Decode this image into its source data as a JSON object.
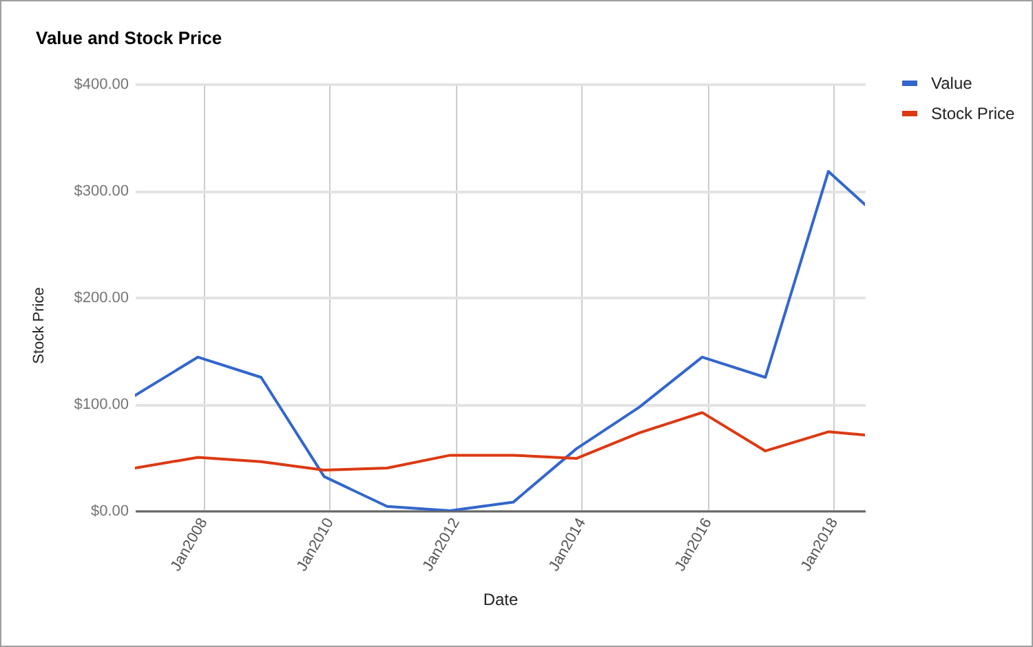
{
  "chart_data": {
    "type": "line",
    "title": "Value and Stock Price",
    "xlabel": "Date",
    "ylabel": "Stock Price",
    "x": [
      "2006-12",
      "2007-12",
      "2008-12",
      "2009-12",
      "2010-12",
      "2011-12",
      "2012-12",
      "2013-12",
      "2014-12",
      "2015-12",
      "2016-12",
      "2017-12",
      "2018-07"
    ],
    "series": [
      {
        "name": "Value",
        "color": "#3366cc",
        "values": [
          108,
          144,
          125,
          32,
          4,
          0,
          8,
          58,
          97,
          144,
          125,
          318,
          287
        ]
      },
      {
        "name": "Stock Price",
        "color": "#dc3912",
        "values": [
          40,
          50,
          46,
          38,
          40,
          52,
          52,
          49,
          73,
          92,
          56,
          74,
          71
        ]
      }
    ],
    "xlim": [
      "2006-12",
      "2018-07"
    ],
    "xticks": [
      {
        "value": "2008-01",
        "label": "Jan2008"
      },
      {
        "value": "2010-01",
        "label": "Jan2010"
      },
      {
        "value": "2012-01",
        "label": "Jan2012"
      },
      {
        "value": "2014-01",
        "label": "Jan2014"
      },
      {
        "value": "2016-01",
        "label": "Jan2016"
      },
      {
        "value": "2018-01",
        "label": "Jan2018"
      }
    ],
    "ylim": [
      0,
      400
    ],
    "yticks": [
      {
        "value": 0,
        "label": "$0.00"
      },
      {
        "value": 100,
        "label": "$100.00"
      },
      {
        "value": 200,
        "label": "$200.00"
      },
      {
        "value": 300,
        "label": "$300.00"
      },
      {
        "value": 400,
        "label": "$400.00"
      }
    ],
    "grid": true,
    "legend": "top right"
  }
}
